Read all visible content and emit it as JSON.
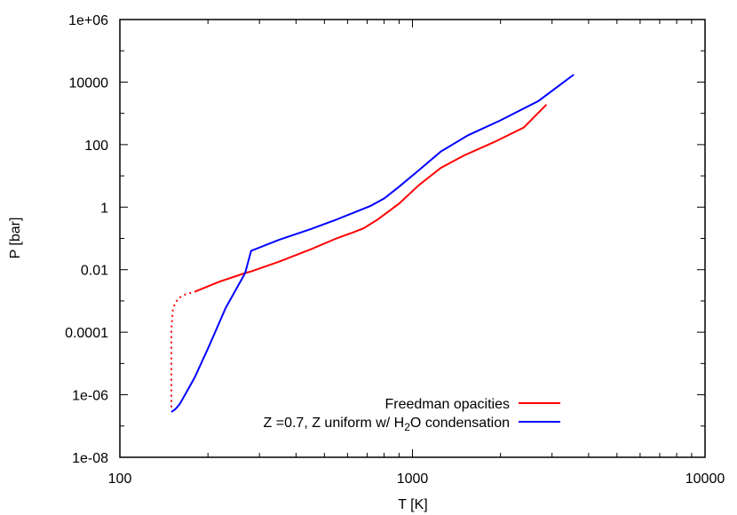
{
  "chart_data": {
    "type": "line",
    "title": "",
    "xlabel": "T [K]",
    "ylabel": "P [bar]",
    "xscale": "log",
    "yscale": "log",
    "xlim": [
      100,
      10000
    ],
    "ylim": [
      1e-08,
      1000000.0
    ],
    "grid": false,
    "legend_position": "lower right",
    "x_ticks": [
      "100",
      "1000",
      "10000"
    ],
    "y_ticks": [
      "1e-08",
      "1e-06",
      "0.0001",
      "0.01",
      "1",
      "100",
      "10000",
      "1e+06"
    ],
    "series": [
      {
        "name": "Freedman opacities",
        "color": "#ff0000",
        "dotted_segment": {
          "T": [
            150,
            150,
            150,
            150,
            152,
            158,
            167,
            181
          ],
          "P": [
            4e-07,
            2e-06,
            2e-05,
            0.00013,
            0.0006,
            0.0012,
            0.0016,
            0.002
          ]
        },
        "T": [
          181,
          220,
          268,
          281,
          350,
          450,
          550,
          620,
          680,
          760,
          900,
          1050,
          1250,
          1500,
          1900,
          2400,
          2870
        ],
        "P": [
          0.002,
          0.0042,
          0.0078,
          0.0088,
          0.018,
          0.045,
          0.1,
          0.15,
          0.21,
          0.4,
          1.3,
          5,
          18,
          45,
          120,
          350,
          1900
        ]
      },
      {
        "name": "Z =0.7, Z uniform w/ H2O condensation",
        "color": "#0000ff",
        "T": [
          150,
          155,
          160,
          168,
          180,
          200,
          230,
          268,
          281,
          350,
          450,
          550,
          650,
          720,
          800,
          900,
          1050,
          1250,
          1550,
          2000,
          2700,
          3560
        ],
        "P": [
          2.8e-07,
          3.5e-07,
          5e-07,
          1.1e-06,
          3.5e-06,
          3e-05,
          0.0006,
          0.0078,
          0.04,
          0.09,
          0.2,
          0.4,
          0.75,
          1.1,
          1.9,
          4.5,
          15,
          60,
          200,
          600,
          2500,
          17400
        ]
      }
    ]
  },
  "axes": {
    "xlabel": "T [K]",
    "ylabel": "P [bar]"
  },
  "legend": {
    "items": [
      {
        "label": "Freedman opacities",
        "color": "#ff0000"
      },
      {
        "label_prefix": "Z =0.7, Z uniform w/ H",
        "label_sub": "2",
        "label_suffix": "O condensation",
        "color": "#0000ff"
      }
    ]
  }
}
